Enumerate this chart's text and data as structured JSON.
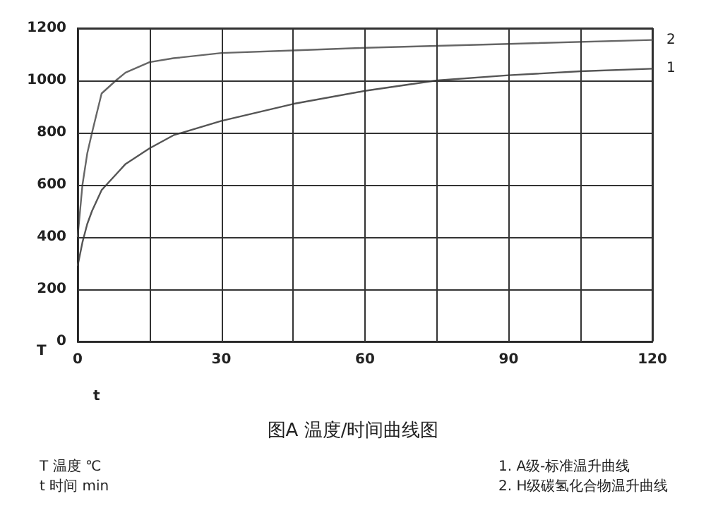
{
  "chart_data": {
    "type": "line",
    "title": "图A 温度/时间曲线图",
    "xlabel": "t",
    "ylabel": "T",
    "xlim": [
      0,
      120
    ],
    "ylim": [
      0,
      1200
    ],
    "xticks": [
      0,
      {
        "value": 15,
        "label": null
      },
      30,
      {
        "value": 45,
        "label": null
      },
      60,
      {
        "value": 75,
        "label": null
      },
      90,
      {
        "value": 105,
        "label": null
      },
      120
    ],
    "yticks": [
      0,
      200,
      400,
      600,
      800,
      1000,
      1200
    ],
    "grid": true,
    "marker": "none",
    "line_style": "solid",
    "legend": false,
    "annotations": [
      "T 温度 ℃",
      "t 时间 min",
      "1. A级-标准温升曲线",
      "2. H级碳氢化合物温升曲线"
    ],
    "series": [
      {
        "name": "1",
        "color": "#555555",
        "x": [
          0,
          1,
          2,
          3,
          5,
          6,
          8,
          10,
          15,
          20,
          30,
          45,
          60,
          75,
          90,
          105,
          120
        ],
        "values": [
          290,
          380,
          450,
          500,
          580,
          600,
          640,
          680,
          740,
          790,
          845,
          910,
          960,
          1000,
          1020,
          1035,
          1045
        ]
      },
      {
        "name": "2",
        "color": "#666666",
        "x": [
          0,
          1,
          2,
          3,
          5,
          8,
          10,
          15,
          20,
          30,
          45,
          60,
          90,
          120
        ],
        "values": [
          400,
          600,
          720,
          800,
          950,
          1000,
          1030,
          1070,
          1085,
          1105,
          1115,
          1125,
          1140,
          1155
        ]
      }
    ]
  }
}
